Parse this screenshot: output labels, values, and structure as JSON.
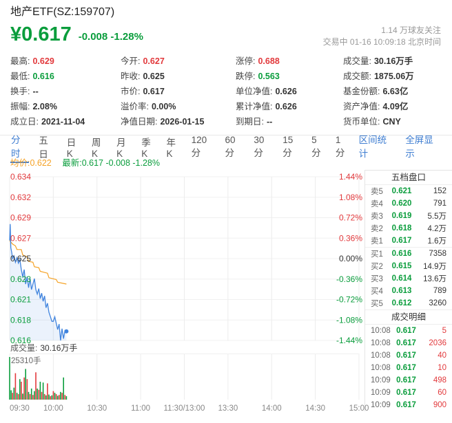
{
  "theme": {
    "red": "#e2393c",
    "green": "#0a9d3c",
    "dark": "#333333",
    "gray": "#666666",
    "light_gray": "#999999",
    "blue": "#3e7dd1",
    "orange": "#f5a123",
    "line_blue": "#3f83de",
    "area_blue": "rgba(63,131,222,0.10)",
    "grid_h": "#f0f0f0",
    "grid_v": "#ececec"
  },
  "header": {
    "title": "地产ETF(SZ:159707)",
    "price": "¥0.617",
    "change": "-0.008 -1.28%",
    "followers": "1.14 万球友关注",
    "status": "交易中 01-16 10:09:18 北京时间"
  },
  "stats": {
    "columns": [
      [
        {
          "l": "最高:",
          "v": "0.629",
          "c": "red"
        },
        {
          "l": "最低:",
          "v": "0.616",
          "c": "green"
        },
        {
          "l": "换手:",
          "v": "--",
          "c": "dark"
        },
        {
          "l": "振幅:",
          "v": "2.08%",
          "c": "dark"
        },
        {
          "l": "成立日:",
          "v": "2021-11-04",
          "c": "dark"
        }
      ],
      [
        {
          "l": "今开:",
          "v": "0.627",
          "c": "red"
        },
        {
          "l": "昨收:",
          "v": "0.625",
          "c": "dark"
        },
        {
          "l": "市价:",
          "v": "0.617",
          "c": "dark"
        },
        {
          "l": "溢价率:",
          "v": "0.00%",
          "c": "dark"
        },
        {
          "l": "净值日期:",
          "v": "2026-01-15",
          "c": "dark"
        }
      ],
      [
        {
          "l": "涨停:",
          "v": "0.688",
          "c": "red"
        },
        {
          "l": "跌停:",
          "v": "0.563",
          "c": "green"
        },
        {
          "l": "单位净值:",
          "v": "0.626",
          "c": "dark"
        },
        {
          "l": "累计净值:",
          "v": "0.626",
          "c": "dark"
        },
        {
          "l": "到期日:",
          "v": "--",
          "c": "dark"
        }
      ],
      [
        {
          "l": "成交量:",
          "v": "30.16万手",
          "c": "dark"
        },
        {
          "l": "成交额:",
          "v": "1875.06万",
          "c": "dark"
        },
        {
          "l": "基金份额:",
          "v": "6.63亿",
          "c": "dark"
        },
        {
          "l": "资产净值:",
          "v": "4.09亿",
          "c": "dark"
        },
        {
          "l": "货币单位:",
          "v": "CNY",
          "c": "dark"
        }
      ]
    ]
  },
  "tabs": {
    "items": [
      {
        "label": "分时",
        "active": true
      },
      {
        "label": "五日",
        "active": false
      },
      {
        "label": "日K",
        "active": false
      },
      {
        "label": "周K",
        "active": false
      },
      {
        "label": "月K",
        "active": false
      },
      {
        "label": "季K",
        "active": false
      },
      {
        "label": "年K",
        "active": false
      },
      {
        "label": "120分",
        "active": false
      },
      {
        "label": "60分",
        "active": false
      },
      {
        "label": "30分",
        "active": false
      },
      {
        "label": "15分",
        "active": false
      },
      {
        "label": "5分",
        "active": false
      },
      {
        "label": "1分",
        "active": false
      }
    ],
    "actions": [
      "区间统计",
      "全屏显示"
    ]
  },
  "legend": {
    "avg": "均价:0.622",
    "latest": "最新:0.617 -0.008 -1.28%"
  },
  "vol_row": {
    "label": "成交量:",
    "value": "30.16万手"
  },
  "chart_data": {
    "type": "line",
    "title": "分时",
    "prev_close": 0.625,
    "y_min": 0.616,
    "y_max": 0.634,
    "total_minutes": 240,
    "grid": true,
    "y_axis": [
      {
        "price": "0.634",
        "pct": "1.44%",
        "c": "red"
      },
      {
        "price": "0.632",
        "pct": "1.08%",
        "c": "red"
      },
      {
        "price": "0.629",
        "pct": "0.72%",
        "c": "red"
      },
      {
        "price": "0.627",
        "pct": "0.36%",
        "c": "red"
      },
      {
        "price": "0.625",
        "pct": "0.00%",
        "c": "dark"
      },
      {
        "price": "0.623",
        "pct": "-0.36%",
        "c": "green"
      },
      {
        "price": "0.621",
        "pct": "-0.72%",
        "c": "green"
      },
      {
        "price": "0.618",
        "pct": "-1.08%",
        "c": "green"
      },
      {
        "price": "0.616",
        "pct": "-1.44%",
        "c": "green"
      }
    ],
    "x_labels": [
      "09:30",
      "10:00",
      "10:30",
      "11:00",
      "11:30/13:00",
      "13:30",
      "14:00",
      "14:30",
      "15:00"
    ],
    "series": [
      {
        "name": "price",
        "color_key": "line_blue",
        "values": [
          [
            0,
            0.627
          ],
          [
            0.4,
            0.6288
          ],
          [
            0.8,
            0.6262
          ],
          [
            1.5,
            0.6256
          ],
          [
            2,
            0.625
          ],
          [
            3,
            0.6253
          ],
          [
            4,
            0.6246
          ],
          [
            5,
            0.6251
          ],
          [
            6,
            0.6245
          ],
          [
            7,
            0.6249
          ],
          [
            8,
            0.6238
          ],
          [
            9,
            0.623
          ],
          [
            10,
            0.6238
          ],
          [
            11,
            0.6222
          ],
          [
            12,
            0.623
          ],
          [
            13,
            0.6218
          ],
          [
            14,
            0.6228
          ],
          [
            15,
            0.6216
          ],
          [
            16,
            0.6222
          ],
          [
            17,
            0.6228
          ],
          [
            18,
            0.6216
          ],
          [
            19,
            0.6211
          ],
          [
            20,
            0.6217
          ],
          [
            21,
            0.6206
          ],
          [
            22,
            0.6212
          ],
          [
            23,
            0.6203
          ],
          [
            24,
            0.6209
          ],
          [
            25,
            0.6196
          ],
          [
            26,
            0.6201
          ],
          [
            27,
            0.6191
          ],
          [
            28,
            0.6186
          ],
          [
            29,
            0.6181
          ],
          [
            30,
            0.6181
          ],
          [
            31,
            0.6186
          ],
          [
            32,
            0.6179
          ],
          [
            33,
            0.6172
          ],
          [
            34,
            0.6178
          ],
          [
            35,
            0.616
          ],
          [
            36,
            0.6173
          ],
          [
            37,
            0.6162
          ],
          [
            38,
            0.6171
          ],
          [
            39,
            0.617
          ]
        ]
      },
      {
        "name": "avg",
        "color_key": "orange",
        "values": [
          [
            0,
            0.627
          ],
          [
            2,
            0.6266
          ],
          [
            4,
            0.6264
          ],
          [
            5,
            0.626
          ],
          [
            8,
            0.626
          ],
          [
            9,
            0.6254
          ],
          [
            12,
            0.6252
          ],
          [
            13,
            0.6247
          ],
          [
            16,
            0.6246
          ],
          [
            17,
            0.6241
          ],
          [
            20,
            0.624
          ],
          [
            21,
            0.6236
          ],
          [
            26,
            0.6234
          ],
          [
            27,
            0.6229
          ],
          [
            32,
            0.6227
          ],
          [
            33,
            0.6224
          ],
          [
            39,
            0.6222
          ]
        ]
      }
    ],
    "volume": {
      "max_label": "25310手",
      "bars": [
        [
          0,
          1.0,
          "g"
        ],
        [
          1,
          0.22,
          "g"
        ],
        [
          2,
          0.16,
          "r"
        ],
        [
          3,
          0.28,
          "g"
        ],
        [
          4,
          0.62,
          "r"
        ],
        [
          5,
          0.16,
          "g"
        ],
        [
          6,
          0.13,
          "r"
        ],
        [
          7,
          0.48,
          "g"
        ],
        [
          8,
          0.42,
          "r"
        ],
        [
          9,
          0.14,
          "g"
        ],
        [
          10,
          0.52,
          "r"
        ],
        [
          11,
          0.72,
          "g"
        ],
        [
          12,
          0.48,
          "r"
        ],
        [
          13,
          0.18,
          "g"
        ],
        [
          14,
          0.13,
          "r"
        ],
        [
          15,
          0.26,
          "g"
        ],
        [
          16,
          0.11,
          "r"
        ],
        [
          17,
          0.2,
          "g"
        ],
        [
          18,
          0.64,
          "r"
        ],
        [
          19,
          0.26,
          "g"
        ],
        [
          20,
          0.23,
          "r"
        ],
        [
          21,
          0.42,
          "g"
        ],
        [
          22,
          0.18,
          "r"
        ],
        [
          23,
          0.4,
          "g"
        ],
        [
          24,
          0.13,
          "r"
        ],
        [
          25,
          0.1,
          "g"
        ],
        [
          26,
          0.38,
          "r"
        ],
        [
          27,
          0.12,
          "g"
        ],
        [
          28,
          0.08,
          "r"
        ],
        [
          29,
          0.1,
          "g"
        ],
        [
          30,
          0.2,
          "r"
        ],
        [
          31,
          0.16,
          "g"
        ],
        [
          32,
          0.13,
          "r"
        ],
        [
          33,
          0.09,
          "g"
        ],
        [
          34,
          0.11,
          "r"
        ],
        [
          35,
          0.18,
          "g"
        ],
        [
          36,
          0.16,
          "r"
        ],
        [
          37,
          0.52,
          "g"
        ],
        [
          38,
          0.11,
          "r"
        ],
        [
          39,
          0.08,
          "g"
        ]
      ]
    }
  },
  "order_book": {
    "title": "五档盘口",
    "rows": [
      {
        "side": "卖5",
        "price": "0.621",
        "vol": "152",
        "divider": false
      },
      {
        "side": "卖4",
        "price": "0.620",
        "vol": "791",
        "divider": false
      },
      {
        "side": "卖3",
        "price": "0.619",
        "vol": "5.5万",
        "divider": false
      },
      {
        "side": "卖2",
        "price": "0.618",
        "vol": "4.2万",
        "divider": false
      },
      {
        "side": "卖1",
        "price": "0.617",
        "vol": "1.6万",
        "divider": false
      },
      {
        "side": "买1",
        "price": "0.616",
        "vol": "7358",
        "divider": true
      },
      {
        "side": "买2",
        "price": "0.615",
        "vol": "14.9万",
        "divider": false
      },
      {
        "side": "买3",
        "price": "0.614",
        "vol": "13.6万",
        "divider": false
      },
      {
        "side": "买4",
        "price": "0.613",
        "vol": "789",
        "divider": false
      },
      {
        "side": "买5",
        "price": "0.612",
        "vol": "3260",
        "divider": false
      }
    ]
  },
  "ticks": {
    "title": "成交明细",
    "rows": [
      {
        "time": "10:08",
        "price": "0.617",
        "vol": "5"
      },
      {
        "time": "10:08",
        "price": "0.617",
        "vol": "2036"
      },
      {
        "time": "10:08",
        "price": "0.617",
        "vol": "40"
      },
      {
        "time": "10:08",
        "price": "0.617",
        "vol": "10"
      },
      {
        "time": "10:09",
        "price": "0.617",
        "vol": "498"
      },
      {
        "time": "10:09",
        "price": "0.617",
        "vol": "60"
      },
      {
        "time": "10:09",
        "price": "0.617",
        "vol": "900"
      }
    ]
  }
}
